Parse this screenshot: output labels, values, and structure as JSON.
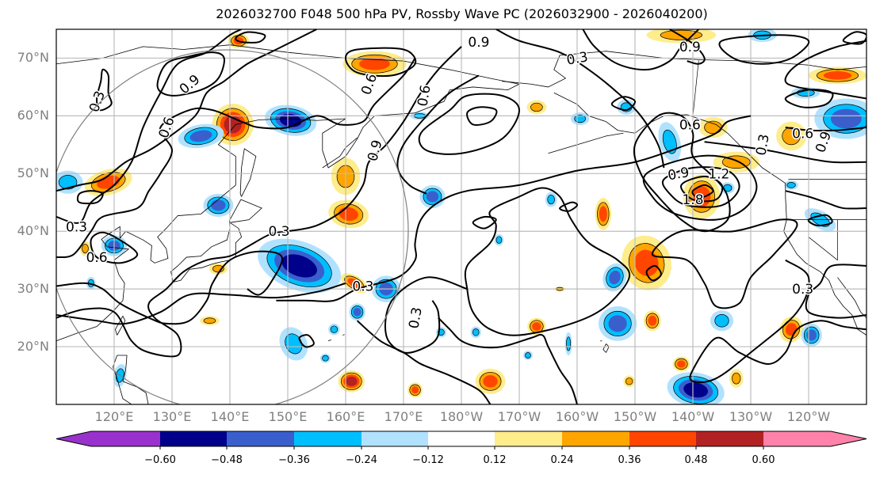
{
  "title": "2026032700 F048 500 hPa PV, Rossby Wave PC (2026032900 - 2026040200)",
  "map": {
    "projection": "PlateCarree",
    "lon_range": [
      110,
      250
    ],
    "lat_range": [
      10,
      75
    ],
    "lat_labels": [
      "70°N",
      "60°N",
      "50°N",
      "40°N",
      "30°N",
      "20°N"
    ],
    "lat_values": [
      70,
      60,
      50,
      40,
      30,
      20
    ],
    "lon_labels": [
      "120°E",
      "130°E",
      "140°E",
      "150°E",
      "160°E",
      "170°E",
      "180°W",
      "170°W",
      "160°W",
      "150°W",
      "140°W",
      "130°W",
      "120°W"
    ],
    "lon_values": [
      120,
      130,
      140,
      150,
      160,
      170,
      180,
      190,
      200,
      210,
      220,
      230,
      240
    ],
    "grid_color": "#bdbdbd",
    "circle_color": "#808080",
    "contour_labels": [
      "0.3",
      "0.6",
      "0.9",
      "1.2",
      "1.8"
    ]
  },
  "colorbar": {
    "ticks": [
      "−0.60",
      "−0.48",
      "−0.36",
      "−0.24",
      "−0.12",
      "0.12",
      "0.24",
      "0.36",
      "0.48",
      "0.60"
    ],
    "levels": [
      -0.6,
      -0.48,
      -0.36,
      -0.24,
      -0.12,
      0.12,
      0.24,
      0.36,
      0.48,
      0.6
    ],
    "colors": [
      "#9932cc",
      "#00008b",
      "#3a5fcd",
      "#00bfff",
      "#b0e2ff",
      "#ffffff",
      "#ffec8b",
      "#ffa500",
      "#ff4500",
      "#b22222",
      "#ff82ab"
    ],
    "extend": "both"
  },
  "chart_data": {
    "type": "contour-map",
    "title": "2026032700 F048 500 hPa PV, Rossby Wave PC (2026032900 - 2026040200)",
    "field_shaded": "Rossby Wave PC anomaly",
    "field_contoured": "500 hPa PV",
    "contour_levels_labeled": [
      0.3,
      0.6,
      0.9,
      1.2,
      1.8
    ],
    "shading_levels": [
      -0.6,
      -0.48,
      -0.36,
      -0.24,
      -0.12,
      0.12,
      0.24,
      0.36,
      0.48,
      0.6
    ],
    "xlabel": "",
    "ylabel": "",
    "xlim": [
      110,
      250
    ],
    "ylim": [
      10,
      75
    ],
    "grid": true
  }
}
